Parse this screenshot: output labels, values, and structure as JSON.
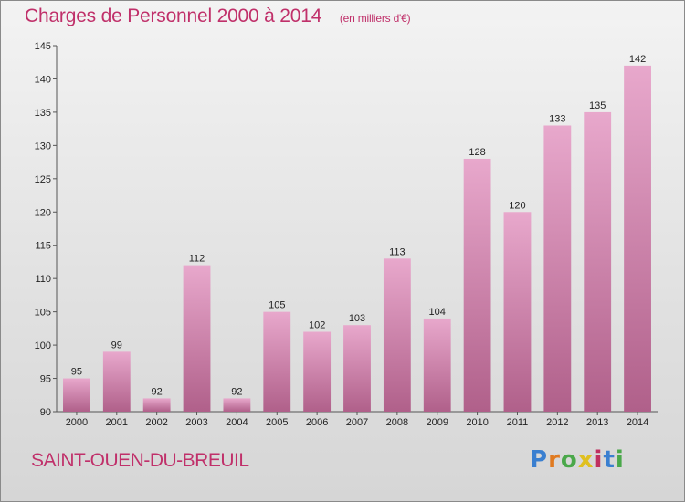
{
  "header": {
    "title": "Charges de Personnel 2000 à 2014",
    "unit": "(en milliers d'€)"
  },
  "footer": {
    "commune": "SAINT-OUEN-DU-BREUIL",
    "logo_letters": [
      "P",
      "r",
      "o",
      "x",
      "i",
      "t",
      "i"
    ]
  },
  "colors": {
    "title": "#c0306a",
    "bar_top": "#e8a8cc",
    "bar_bottom": "#b0608a"
  },
  "chart_data": {
    "type": "bar",
    "title": "Charges de Personnel 2000 à 2014",
    "subtitle": "(en milliers d'€)",
    "xlabel": "",
    "ylabel": "",
    "categories": [
      "2000",
      "2001",
      "2002",
      "2003",
      "2004",
      "2005",
      "2006",
      "2007",
      "2008",
      "2009",
      "2010",
      "2011",
      "2012",
      "2013",
      "2014"
    ],
    "values": [
      95,
      99,
      92,
      112,
      92,
      105,
      102,
      103,
      113,
      104,
      128,
      120,
      133,
      135,
      142
    ],
    "ylim": [
      90,
      145
    ],
    "yticks": [
      90,
      95,
      100,
      105,
      110,
      115,
      120,
      125,
      130,
      135,
      140,
      145
    ],
    "grid": false,
    "legend": "none"
  }
}
